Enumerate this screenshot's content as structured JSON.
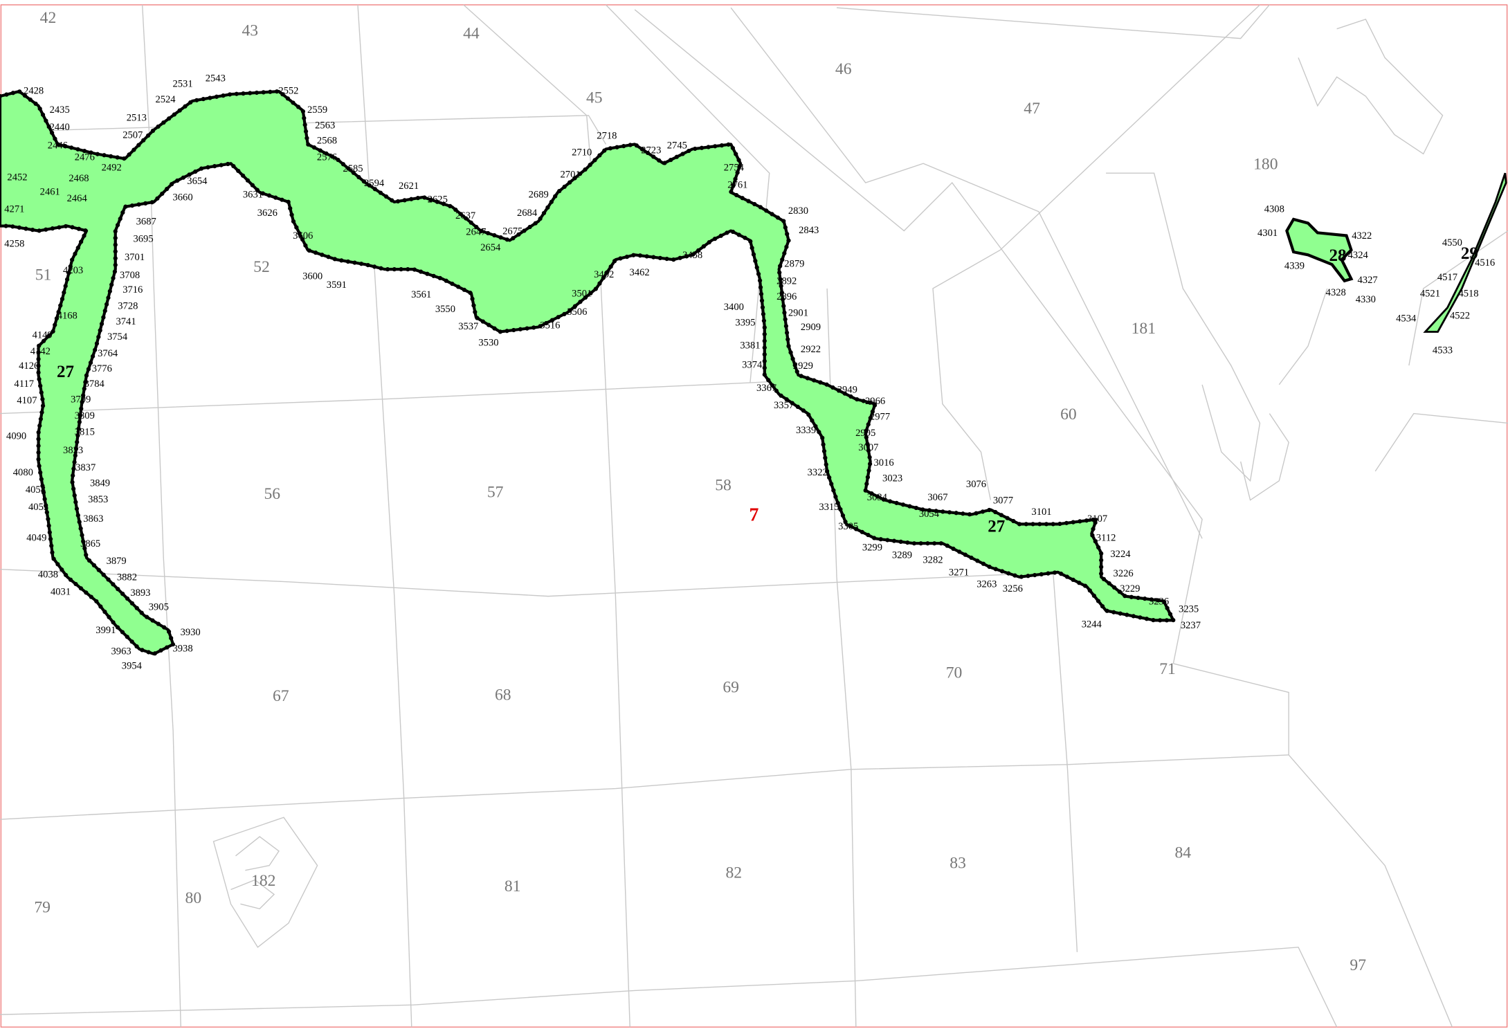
{
  "parcels": [
    "42",
    "43",
    "44",
    "45",
    "46",
    "47",
    "180",
    "181",
    "60",
    "51",
    "52",
    "56",
    "57",
    "58",
    "67",
    "68",
    "69",
    "70",
    "71",
    "79",
    "80",
    "81",
    "82",
    "83",
    "84",
    "97",
    "182"
  ],
  "zones": [
    "27",
    "27",
    "28",
    "29"
  ],
  "highlight": "7",
  "vertex_labels": [
    "2428",
    "2435",
    "2440",
    "2446",
    "2452",
    "2461",
    "2464",
    "2468",
    "2476",
    "2492",
    "2507",
    "2513",
    "2524",
    "2531",
    "2543",
    "2552",
    "2559",
    "2563",
    "2568",
    "2576",
    "2585",
    "2594",
    "2621",
    "2625",
    "2637",
    "2647",
    "2654",
    "2675",
    "2684",
    "2689",
    "2701",
    "2710",
    "2718",
    "2723",
    "2745",
    "2754",
    "2761",
    "2830",
    "2843",
    "2879",
    "2892",
    "2896",
    "2901",
    "2909",
    "2922",
    "2929",
    "2949",
    "2966",
    "2977",
    "2995",
    "3007",
    "3016",
    "3023",
    "3034",
    "3054",
    "3067",
    "3076",
    "3077",
    "3101",
    "3107",
    "3112",
    "3224",
    "3226",
    "3229",
    "3236",
    "3235",
    "3237",
    "3244",
    "3256",
    "3263",
    "3271",
    "3282",
    "3289",
    "3299",
    "3305",
    "3315",
    "3322",
    "3339",
    "3357",
    "3367",
    "3374",
    "3381",
    "3395",
    "3400",
    "3462",
    "3458",
    "3492",
    "3501",
    "3506",
    "3516",
    "3530",
    "3537",
    "3550",
    "3561",
    "3591",
    "3600",
    "3606",
    "3626",
    "3631",
    "3660",
    "3654",
    "3687",
    "3695",
    "3701",
    "3708",
    "3716",
    "3728",
    "3741",
    "3754",
    "3764",
    "3776",
    "3784",
    "3799",
    "3809",
    "3815",
    "3823",
    "3837",
    "3849",
    "3853",
    "3863",
    "3865",
    "3879",
    "3882",
    "3893",
    "3905",
    "3930",
    "3938",
    "3954",
    "3963",
    "3991",
    "4031",
    "4038",
    "4049",
    "4053",
    "4058",
    "4080",
    "4090",
    "4107",
    "4117",
    "4126",
    "4142",
    "4149",
    "4168",
    "4203",
    "4258",
    "4271",
    "4308",
    "4301",
    "4339",
    "4327",
    "4330",
    "4328",
    "4324",
    "4322",
    "4533",
    "4534",
    "4522",
    "4518",
    "4516",
    "4550",
    "4521",
    "4517"
  ]
}
